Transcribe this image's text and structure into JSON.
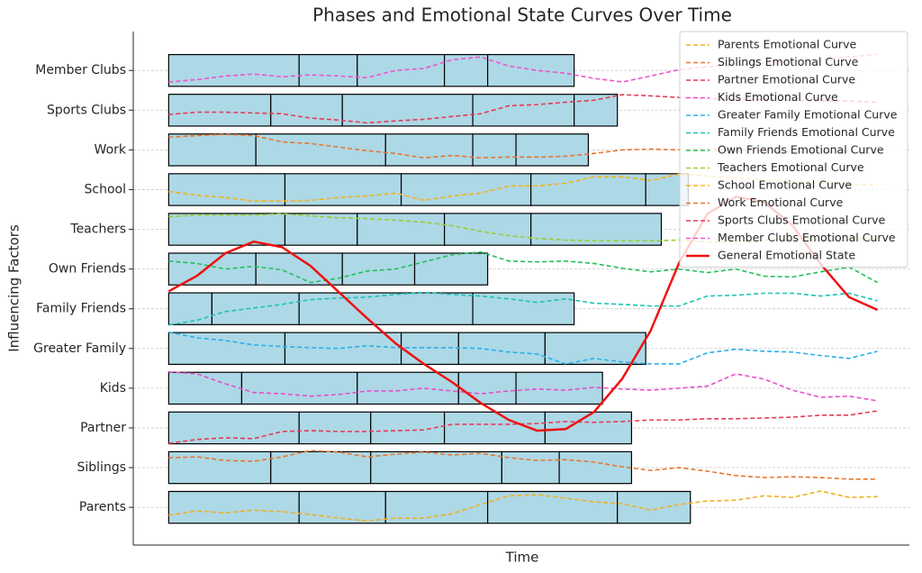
{
  "chart_data": {
    "type": "phase_curves",
    "title": "Phases and Emotional State Curves Over Time",
    "xlabel": "Time",
    "ylabel": "Influencing Factors",
    "categories": [
      "Parents",
      "Siblings",
      "Partner",
      "Kids",
      "Greater Family",
      "Family Friends",
      "Own Friends",
      "Teachers",
      "School",
      "Work",
      "Sports Clubs",
      "Member Clubs"
    ],
    "xlim": [
      -5,
      104.5
    ],
    "ylim": [
      -0.95,
      11.98
    ],
    "grid": true,
    "legend": "upper right",
    "phase_color": "#add8e6",
    "phases": [
      [
        0,
        18.4,
        30.6,
        45.0,
        63.3,
        73.6
      ],
      [
        0,
        14.4,
        28.5,
        47.0,
        55.1,
        65.3
      ],
      [
        0,
        18.4,
        28.5,
        38.9,
        53.1,
        65.3
      ],
      [
        0,
        10.3,
        26.6,
        40.9,
        49.0,
        61.2
      ],
      [
        0,
        16.4,
        32.8,
        40.9,
        53.1,
        67.3
      ],
      [
        0,
        6.1,
        18.4,
        42.9,
        57.2
      ],
      [
        0,
        12.3,
        24.5,
        34.7,
        45.0
      ],
      [
        0,
        16.4,
        26.6,
        38.9,
        51.1,
        69.5
      ],
      [
        0,
        16.4,
        32.8,
        51.1,
        67.3,
        73.3
      ],
      [
        0,
        12.3,
        30.6,
        42.9,
        49.0,
        59.2
      ],
      [
        0,
        14.4,
        24.5,
        42.9,
        57.2,
        63.3
      ],
      [
        0,
        18.4,
        26.6,
        38.9,
        45.0,
        57.2
      ]
    ],
    "x": [
      0,
      4,
      8,
      12,
      16,
      20,
      24,
      28,
      32,
      36,
      40,
      44,
      48,
      52,
      56,
      60,
      64,
      68,
      72,
      76,
      80,
      84,
      88,
      92,
      96,
      100
    ],
    "series": [
      {
        "name": "Parents Emotional Curve",
        "color": "#f0b020",
        "values": [
          -0.2,
          -0.09,
          -0.14,
          -0.07,
          -0.11,
          -0.18,
          -0.27,
          -0.34,
          -0.27,
          -0.27,
          -0.16,
          0.07,
          0.29,
          0.32,
          0.23,
          0.14,
          0.09,
          -0.07,
          0.07,
          0.16,
          0.18,
          0.29,
          0.25,
          0.41,
          0.25,
          0.27
        ]
      },
      {
        "name": "Siblings Emotional Curve",
        "color": "#e8762d",
        "values": [
          1.25,
          1.27,
          1.18,
          1.16,
          1.27,
          1.43,
          1.39,
          1.27,
          1.34,
          1.39,
          1.32,
          1.36,
          1.25,
          1.18,
          1.2,
          1.14,
          1.02,
          0.93,
          1,
          0.91,
          0.8,
          0.75,
          0.77,
          0.75,
          0.71,
          0.71
        ]
      },
      {
        "name": "Partner Emotional Curve",
        "color": "#e63a5a",
        "values": [
          1.61,
          1.71,
          1.75,
          1.73,
          1.91,
          1.93,
          1.91,
          1.91,
          1.93,
          1.95,
          2.09,
          2.09,
          2.09,
          2.11,
          2.16,
          2.14,
          2.16,
          2.2,
          2.2,
          2.23,
          2.23,
          2.25,
          2.27,
          2.32,
          2.32,
          2.43
        ]
      },
      {
        "name": "Kids Emotional Curve",
        "color": "#e84fc8",
        "values": [
          3.41,
          3.36,
          3.11,
          2.89,
          2.86,
          2.8,
          2.84,
          2.93,
          2.93,
          3,
          2.93,
          2.86,
          2.93,
          2.98,
          2.95,
          3.02,
          2.98,
          2.95,
          3,
          3.05,
          3.36,
          3.23,
          2.95,
          2.77,
          2.8,
          2.68
        ]
      },
      {
        "name": "Greater Family Emotional Curve",
        "color": "#29b0e8",
        "values": [
          4.41,
          4.27,
          4.2,
          4.09,
          4.05,
          4.02,
          4,
          4.07,
          4.02,
          4.02,
          4.02,
          4,
          3.91,
          3.86,
          3.61,
          3.75,
          3.66,
          3.61,
          3.61,
          3.89,
          3.98,
          3.93,
          3.91,
          3.82,
          3.75,
          3.93
        ]
      },
      {
        "name": "Family Friends Emotional Curve",
        "color": "#1cc4b4",
        "values": [
          4.59,
          4.71,
          4.93,
          5.02,
          5.11,
          5.23,
          5.27,
          5.29,
          5.36,
          5.41,
          5.36,
          5.32,
          5.25,
          5.16,
          5.25,
          5.14,
          5.11,
          5.07,
          5.07,
          5.32,
          5.34,
          5.39,
          5.39,
          5.32,
          5.39,
          5.2
        ]
      },
      {
        "name": "Own Friends Emotional Curve",
        "color": "#22c05a",
        "values": [
          6.2,
          6.14,
          6,
          6.07,
          5.98,
          5.66,
          5.77,
          5.95,
          6,
          6.18,
          6.36,
          6.43,
          6.2,
          6.18,
          6.2,
          6.14,
          6.02,
          5.93,
          6,
          5.91,
          6,
          5.82,
          5.8,
          5.93,
          6.05,
          5.66
        ]
      },
      {
        "name": "Teachers Emotional Curve",
        "color": "#9acd32",
        "values": [
          7.32,
          7.36,
          7.36,
          7.36,
          7.39,
          7.34,
          7.29,
          7.27,
          7.23,
          7.18,
          7.09,
          6.95,
          6.84,
          6.77,
          6.73,
          6.71,
          6.71,
          6.71,
          6.73,
          6.68,
          6.68,
          6.73,
          6.77,
          6.73,
          6.75,
          6.77
        ]
      },
      {
        "name": "School Emotional Curve",
        "color": "#f5b31b",
        "values": [
          7.95,
          7.86,
          7.8,
          7.71,
          7.71,
          7.73,
          7.8,
          7.84,
          7.91,
          7.73,
          7.84,
          7.91,
          8.09,
          8.09,
          8.16,
          8.32,
          8.32,
          8.23,
          8.39,
          8.34,
          8.29,
          8.25,
          8.2,
          8.16,
          8.14,
          8.11
        ]
      },
      {
        "name": "Work Emotional Curve",
        "color": "#e8762d",
        "values": [
          9.32,
          9.36,
          9.39,
          9.36,
          9.2,
          9.16,
          9.07,
          8.98,
          8.91,
          8.8,
          8.86,
          8.8,
          8.82,
          8.82,
          8.84,
          8.91,
          9,
          9.02,
          9,
          9.02,
          9,
          8.98,
          8.95,
          8.95,
          8.95,
          8.93
        ]
      },
      {
        "name": "Sports Clubs Emotional Curve",
        "color": "#e63a5a",
        "values": [
          9.89,
          9.95,
          9.95,
          9.93,
          9.91,
          9.8,
          9.75,
          9.68,
          9.73,
          9.77,
          9.84,
          9.91,
          10.11,
          10.14,
          10.2,
          10.25,
          10.39,
          10.36,
          10.32,
          10.29,
          10.27,
          10.27,
          10.25,
          10.23,
          10.23,
          10.2
        ]
      },
      {
        "name": "Member Clubs Emotional Curve",
        "color": "#ee55cc",
        "values": [
          10.71,
          10.77,
          10.86,
          10.91,
          10.84,
          10.89,
          10.86,
          10.82,
          11,
          11.05,
          11.27,
          11.34,
          11.11,
          11,
          10.93,
          10.8,
          10.71,
          10.86,
          11.02,
          11.09,
          11.14,
          11.18,
          11.23,
          11.27,
          11.34,
          11.41
        ]
      },
      {
        "name": "General Emotional State",
        "color": "#ee1111",
        "values": [
          5.44,
          5.83,
          6.4,
          6.69,
          6.55,
          6.08,
          5.42,
          4.76,
          4.13,
          3.61,
          3.15,
          2.63,
          2.2,
          1.93,
          1.97,
          2.4,
          3.24,
          4.45,
          6.15,
          7.39,
          7.82,
          7.69,
          7.1,
          6.12,
          5.29,
          4.97
        ]
      }
    ]
  }
}
